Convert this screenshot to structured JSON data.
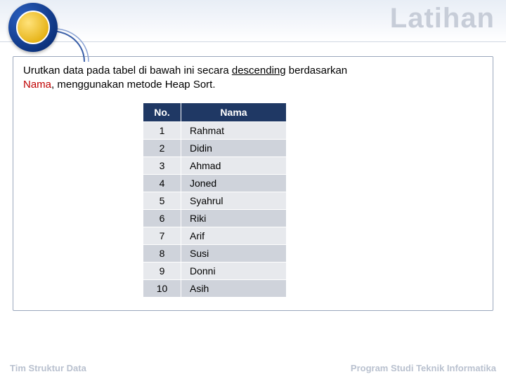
{
  "header": {
    "title": "Latihan"
  },
  "instruction": {
    "prefix": "Urutkan data pada tabel di bawah ini secara ",
    "keyword_desc": "descending",
    "mid": " berdasarkan ",
    "keyword_nama": "Nama",
    "suffix": ", menggunakan metode Heap Sort."
  },
  "table": {
    "columns": [
      "No.",
      "Nama"
    ],
    "rows": [
      [
        "1",
        "Rahmat"
      ],
      [
        "2",
        "Didin"
      ],
      [
        "3",
        "Ahmad"
      ],
      [
        "4",
        "Joned"
      ],
      [
        "5",
        "Syahrul"
      ],
      [
        "6",
        "Riki"
      ],
      [
        "7",
        "Arif"
      ],
      [
        "8",
        "Susi"
      ],
      [
        "9",
        "Donni"
      ],
      [
        "10",
        "Asih"
      ]
    ],
    "header_bg": "#1f3864",
    "header_text_color": "#ffffff",
    "row_odd_bg": "#e7e9ed",
    "row_even_bg": "#cfd3db",
    "col_no_width": 54,
    "col_nama_width": 150,
    "font_size": 14
  },
  "footer": {
    "left": "Tim Struktur Data",
    "right": "Program Studi Teknik Informatika"
  },
  "colors": {
    "title_color": "#c7cdd8",
    "footer_color": "#b9c1cf",
    "box_border": "#9aa7bc",
    "red": "#c00000"
  }
}
